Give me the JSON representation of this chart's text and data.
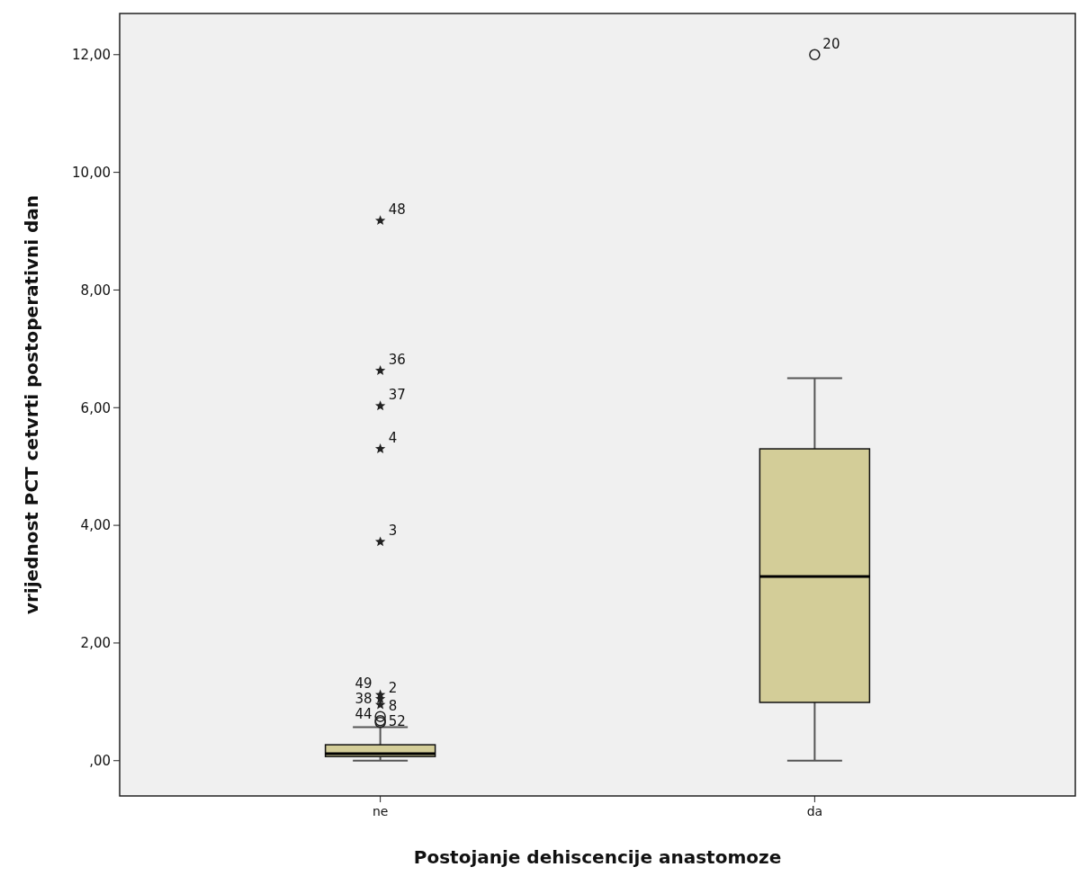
{
  "chart_data": {
    "type": "box",
    "xlabel": "Postojanje dehiscencije anastomoze",
    "ylabel": "vrijednost PCT cetvrti postoperativni dan",
    "categories": [
      "ne",
      "da"
    ],
    "color": "#d3cd98",
    "boxes": [
      {
        "low": 0.0,
        "q1": 0.07,
        "median": 0.12,
        "q3": 0.27,
        "high": 0.57,
        "outliers": [
          0.65,
          0.68,
          0.75,
          0.95,
          1.05,
          1.12,
          3.72,
          5.3,
          6.03,
          6.63,
          9.18
        ]
      },
      {
        "low": 0.0,
        "q1": 0.99,
        "median": 3.13,
        "q3": 5.3,
        "high": 6.5,
        "outliers": [
          12.0
        ]
      }
    ],
    "ylim": [
      -0.6,
      12.7
    ],
    "yticks": [
      {
        "value": 0,
        "label": ",00"
      },
      {
        "value": 2,
        "label": "2,00"
      },
      {
        "value": 4,
        "label": "4,00"
      },
      {
        "value": 6,
        "label": "6,00"
      },
      {
        "value": 8,
        "label": "8,00"
      },
      {
        "value": 10,
        "label": "10,00"
      },
      {
        "value": 12,
        "label": "12,00"
      }
    ],
    "grid": false,
    "annotations": [
      "52",
      "44",
      "8",
      "38",
      "2",
      "49",
      "3",
      "4",
      "37",
      "36",
      "48",
      "20"
    ]
  }
}
